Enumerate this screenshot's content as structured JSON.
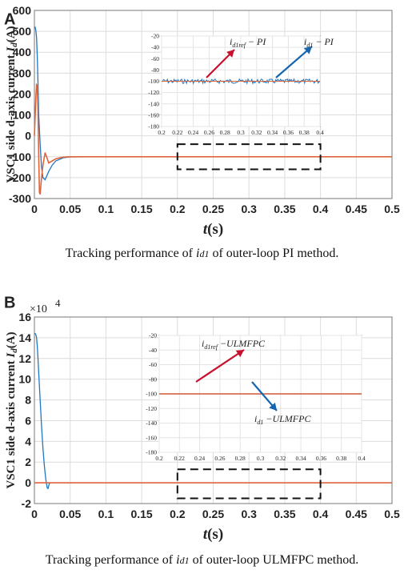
{
  "panels": [
    {
      "letter": "A",
      "ylabel_prefix": "VSC1 side d-axis current ",
      "ylabel_var": "I",
      "ylabel_sub": "d",
      "ylabel_unit": "(A)",
      "xlabel_var": "t",
      "xlabel_unit": "(s)",
      "caption_pre": "Tracking performance of ",
      "caption_var": "i",
      "caption_sub": "d1",
      "caption_post": " of outer-loop PI method."
    },
    {
      "letter": "B",
      "ylabel_prefix": "VSC1 side d-axis current ",
      "ylabel_var": "I",
      "ylabel_sub": "d",
      "ylabel_unit": "(A)",
      "xlabel_var": "t",
      "xlabel_unit": "(s)",
      "multiplier_base": "×10",
      "multiplier_exp": "4",
      "caption_pre": "Tracking performance of ",
      "caption_var": "i",
      "caption_sub": "d1",
      "caption_post": " of outer-loop ULMFPC method."
    }
  ],
  "colors": {
    "ref": "#e0643a",
    "actual": "#1f77c4",
    "arrow_ref": "#c8102e",
    "arrow_actual": "#1565b0",
    "grid": "#dcdcdc"
  },
  "chart_data": [
    {
      "type": "line",
      "xlim": [
        0,
        0.5
      ],
      "ylim": [
        -300,
        600
      ],
      "xticks": [
        "0",
        "0.05",
        "0.1",
        "0.15",
        "0.2",
        "0.25",
        "0.3",
        "0.35",
        "0.4",
        "0.45",
        "0.5"
      ],
      "yticks": [
        "-300",
        "-200",
        "-100",
        "0",
        "100",
        "200",
        "300",
        "400",
        "500",
        "600"
      ],
      "grid": true,
      "series": [
        {
          "role": "actual",
          "x": [
            0,
            0.001,
            0.002,
            0.003,
            0.004,
            0.005,
            0.006,
            0.008,
            0.01,
            0.012,
            0.015,
            0.02,
            0.025,
            0.03,
            0.04,
            0.05,
            0.07,
            0.1,
            0.2,
            0.3,
            0.4,
            0.5
          ],
          "y": [
            520,
            520,
            505,
            470,
            380,
            250,
            100,
            -40,
            -150,
            -200,
            -210,
            -170,
            -140,
            -120,
            -105,
            -101,
            -100,
            -100,
            -100,
            -100,
            -100,
            -100
          ]
        },
        {
          "role": "ref",
          "x": [
            0,
            0.002,
            0.003,
            0.004,
            0.005,
            0.006,
            0.007,
            0.008,
            0.01,
            0.012,
            0.015,
            0.018,
            0.02,
            0.025,
            0.03,
            0.04,
            0.05,
            0.07,
            0.1,
            0.2,
            0.3,
            0.4,
            0.5
          ],
          "y": [
            0,
            180,
            245,
            240,
            120,
            -100,
            -270,
            -280,
            -200,
            -140,
            -80,
            -110,
            -130,
            -120,
            -110,
            -102,
            -100,
            -100,
            -100,
            -100,
            -100,
            -100,
            -100
          ]
        }
      ],
      "zoom_box": {
        "x": [
          0.2,
          0.4
        ],
        "y": [
          -160,
          -40
        ]
      },
      "inset": {
        "xlim": [
          0.2,
          0.4
        ],
        "ylim": [
          -180,
          -20
        ],
        "xticks": [
          "0.2",
          "0.22",
          "0.24",
          "0.26",
          "0.28",
          "0.3",
          "0.32",
          "0.34",
          "0.36",
          "0.38",
          "0.4"
        ],
        "yticks": [
          "-20",
          "-40",
          "-60",
          "-80",
          "-100",
          "-120",
          "-140",
          "-160",
          "-180"
        ],
        "ref_level": -100,
        "actual_level": -100,
        "actual_noise": 4,
        "label_ref_var": "i",
        "label_ref_sub": "d1ref",
        "label_ref_method": " − PI",
        "label_actual_var": "i",
        "label_actual_sub": "d1",
        "label_actual_method": " − PI"
      }
    },
    {
      "type": "line",
      "xlim": [
        0,
        0.5
      ],
      "ylim": [
        -2,
        16
      ],
      "yscale_note": "×10^4",
      "xticks": [
        "0",
        "0.05",
        "0.1",
        "0.15",
        "0.2",
        "0.25",
        "0.3",
        "0.35",
        "0.4",
        "0.45",
        "0.5"
      ],
      "yticks": [
        "-2",
        "0",
        "2",
        "4",
        "6",
        "8",
        "10",
        "12",
        "14",
        "16"
      ],
      "grid": true,
      "series": [
        {
          "role": "actual",
          "x": [
            0,
            0.001,
            0.002,
            0.003,
            0.004,
            0.005,
            0.006,
            0.008,
            0.01,
            0.012,
            0.014,
            0.016,
            0.018,
            0.019,
            0.02,
            0.021,
            0.022
          ],
          "y": [
            14.4,
            14.4,
            14.3,
            14.0,
            13.2,
            12.0,
            10.6,
            8.0,
            5.5,
            3.3,
            1.6,
            0.3,
            -0.5,
            -0.55,
            -0.3,
            -0.05,
            0
          ]
        },
        {
          "role": "ref",
          "x": [
            0,
            0.5
          ],
          "y": [
            0,
            0
          ]
        }
      ],
      "zoom_box": {
        "x": [
          0.2,
          0.4
        ],
        "y": [
          -1.5,
          1.3
        ]
      },
      "inset": {
        "xlim": [
          0.2,
          0.4
        ],
        "ylim": [
          -180,
          -20
        ],
        "xticks": [
          "0.2",
          "0.22",
          "0.24",
          "0.26",
          "0.28",
          "0.3",
          "0.32",
          "0.34",
          "0.36",
          "0.38",
          "0.4"
        ],
        "yticks": [
          "-20",
          "-40",
          "-60",
          "-80",
          "-100",
          "-120",
          "-140",
          "-160",
          "-180"
        ],
        "ref_level": -100,
        "actual_level": -100,
        "actual_noise": 0,
        "label_ref_var": "i",
        "label_ref_sub": "d1ref",
        "label_ref_method": " −ULMFPC",
        "label_actual_var": "i",
        "label_actual_sub": "d1",
        "label_actual_method": " −ULMFPC"
      }
    }
  ]
}
